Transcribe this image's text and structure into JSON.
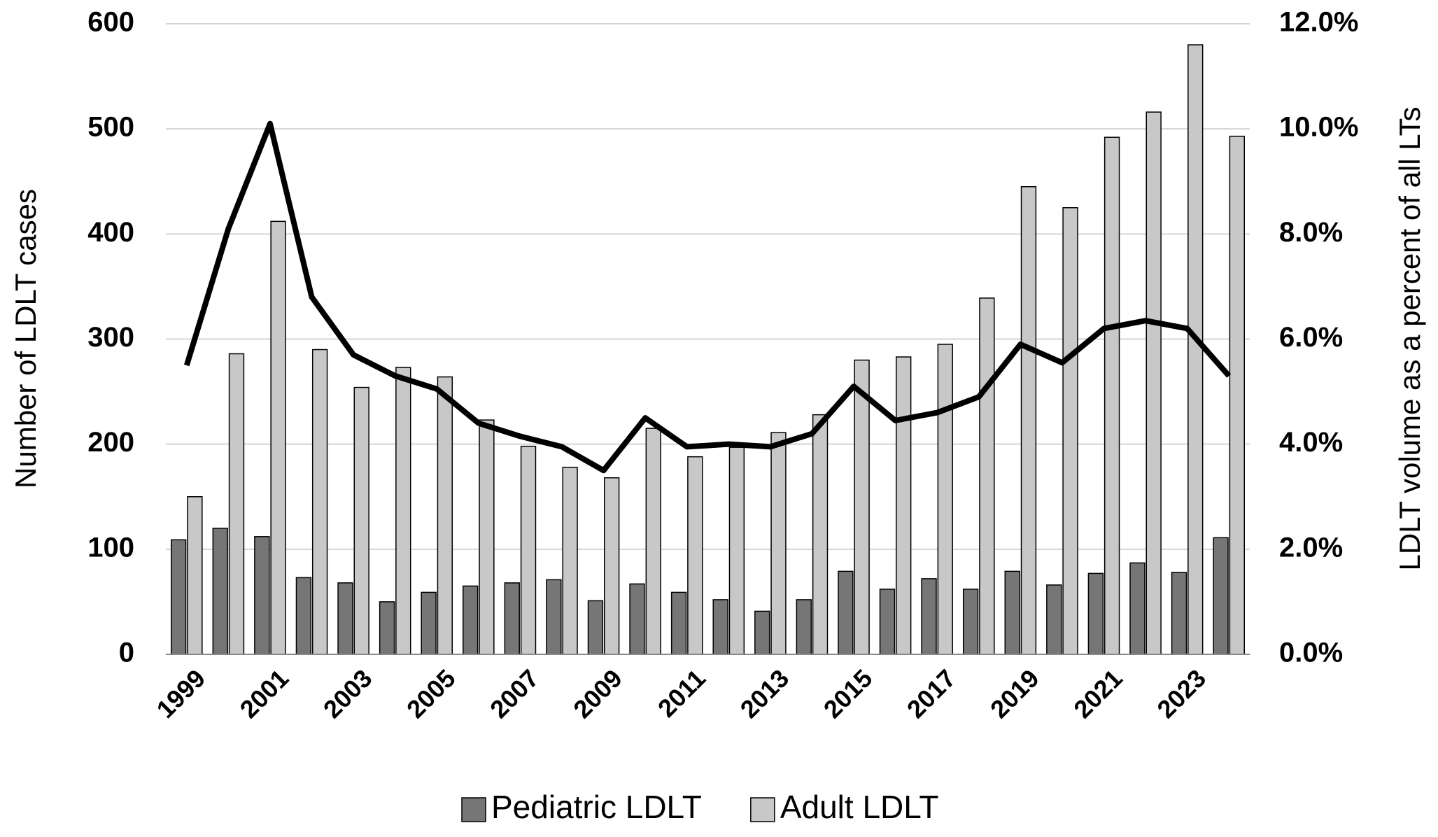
{
  "chart_data": {
    "type": "bar",
    "categories": [
      "1999",
      null,
      "2001",
      null,
      "2003",
      null,
      "2005",
      null,
      "2007",
      null,
      "2009",
      null,
      "2011",
      null,
      "2013",
      null,
      "2015",
      null,
      "2017",
      null,
      "2019",
      null,
      "2021",
      null,
      "2023",
      null
    ],
    "series": [
      {
        "name": "Pediatric LDLT",
        "color": "#767676",
        "type": "bar",
        "values": [
          109,
          120,
          112,
          73,
          68,
          50,
          59,
          65,
          68,
          71,
          51,
          67,
          59,
          52,
          41,
          52,
          79,
          62,
          72,
          62,
          79,
          66,
          77,
          87,
          78,
          111
        ]
      },
      {
        "name": "Adult LDLT",
        "color": "#c8c8c8",
        "type": "bar",
        "values": [
          150,
          286,
          412,
          290,
          254,
          273,
          264,
          223,
          198,
          178,
          168,
          215,
          188,
          197,
          211,
          228,
          280,
          283,
          295,
          339,
          445,
          425,
          492,
          516,
          580,
          493
        ]
      },
      {
        "color": "#000000",
        "type": "line",
        "axis": "y2",
        "values": [
          5.5,
          8.1,
          10.1,
          6.8,
          5.7,
          5.3,
          5.05,
          4.4,
          4.15,
          3.95,
          3.5,
          4.5,
          3.95,
          4.0,
          3.95,
          4.2,
          5.1,
          4.45,
          4.6,
          4.9,
          5.9,
          5.55,
          6.2,
          6.35,
          6.2,
          5.3
        ]
      }
    ],
    "y_label": "Number of LDLT cases",
    "y2_label": "LDLT volume as a percent of all LTs",
    "ylim": [
      0,
      600
    ],
    "yticks": [
      0,
      100,
      200,
      300,
      400,
      500,
      600
    ],
    "y2lim": [
      0,
      12
    ],
    "y2ticks": [
      {
        "value": 0,
        "label": "0.0%"
      },
      {
        "value": 2,
        "label": "2.0%"
      },
      {
        "value": 4,
        "label": "4.0%"
      },
      {
        "value": 6,
        "label": "6.0%"
      },
      {
        "value": 8,
        "label": "8.0%"
      },
      {
        "value": 10,
        "label": "10.0%"
      },
      {
        "value": 12,
        "label": "12.0%"
      }
    ],
    "grid": true,
    "legend": "bottom"
  }
}
